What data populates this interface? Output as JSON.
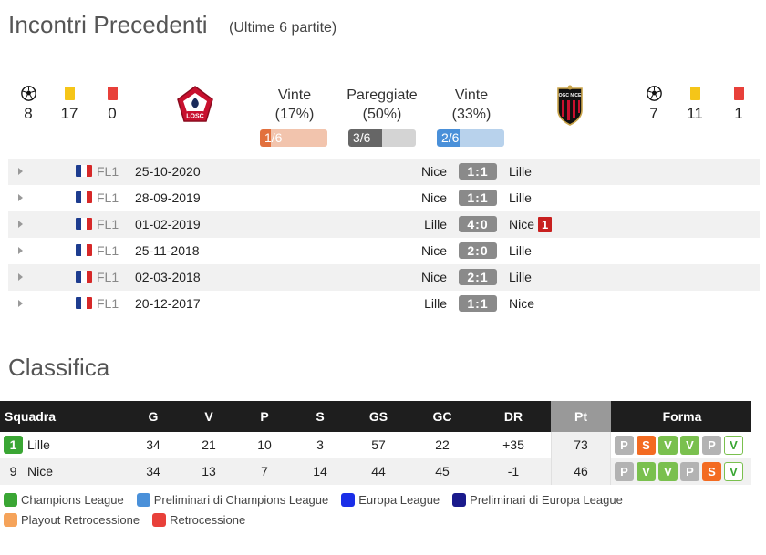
{
  "header": {
    "title": "Incontri Precedenti",
    "subtitle": "(Ultime 6 partite)"
  },
  "home_stats": {
    "goals": "8",
    "yellow": "17",
    "red": "0"
  },
  "away_stats": {
    "goals": "7",
    "yellow": "11",
    "red": "1"
  },
  "home_logo_text": "LOSC",
  "away_logo_text": "OGC NICE",
  "results": {
    "wins_home": {
      "label": "Vinte",
      "pct": "(17%)",
      "bar": "1/6",
      "fraction": 0.1667,
      "color": "#e2703d",
      "bg": "#f2c4ad"
    },
    "draws": {
      "label": "Pareggiate",
      "pct": "(50%)",
      "bar": "3/6",
      "fraction": 0.5,
      "color": "#666666",
      "bg": "#d4d4d4"
    },
    "wins_away": {
      "label": "Vinte",
      "pct": "(33%)",
      "bar": "2/6",
      "fraction": 0.3333,
      "color": "#4a90d9",
      "bg": "#b8d2ec"
    }
  },
  "matches": [
    {
      "comp": "FL1",
      "date": "25-10-2020",
      "home": "Nice",
      "score": "1:1",
      "away": "Lille",
      "red": ""
    },
    {
      "comp": "FL1",
      "date": "28-09-2019",
      "home": "Nice",
      "score": "1:1",
      "away": "Lille",
      "red": ""
    },
    {
      "comp": "FL1",
      "date": "01-02-2019",
      "home": "Lille",
      "score": "4:0",
      "away": "Nice",
      "red": "1"
    },
    {
      "comp": "FL1",
      "date": "25-11-2018",
      "home": "Nice",
      "score": "2:0",
      "away": "Lille",
      "red": ""
    },
    {
      "comp": "FL1",
      "date": "02-03-2018",
      "home": "Nice",
      "score": "2:1",
      "away": "Lille",
      "red": ""
    },
    {
      "comp": "FL1",
      "date": "20-12-2017",
      "home": "Lille",
      "score": "1:1",
      "away": "Nice",
      "red": ""
    }
  ],
  "standings": {
    "title": "Classifica",
    "headers": {
      "team": "Squadra",
      "g": "G",
      "v": "V",
      "p": "P",
      "s": "S",
      "gs": "GS",
      "gc": "GC",
      "dr": "DR",
      "pt": "Pt",
      "form": "Forma"
    },
    "rows": [
      {
        "rank": "1",
        "team": "Lille",
        "g": "34",
        "v": "21",
        "p": "10",
        "s": "3",
        "gs": "57",
        "gc": "22",
        "dr": "+35",
        "pt": "73",
        "form": [
          "P",
          "S",
          "V",
          "V",
          "P",
          "V"
        ]
      },
      {
        "rank": "9",
        "team": "Nice",
        "g": "34",
        "v": "13",
        "p": "7",
        "s": "14",
        "gs": "44",
        "gc": "45",
        "dr": "-1",
        "pt": "46",
        "form": [
          "P",
          "V",
          "V",
          "P",
          "S",
          "V"
        ]
      }
    ]
  },
  "legend": [
    [
      {
        "label": "Champions League",
        "color": "#3aa634"
      },
      {
        "label": "Preliminari di Champions League",
        "color": "#4a90d9"
      },
      {
        "label": "Europa League",
        "color": "#1a2ee8"
      },
      {
        "label": "Preliminari di Europa League",
        "color": "#1a1a8c"
      }
    ],
    [
      {
        "label": "Playout Retrocessione",
        "color": "#f5a35a"
      },
      {
        "label": "Retrocessione",
        "color": "#e8403a"
      }
    ]
  ]
}
